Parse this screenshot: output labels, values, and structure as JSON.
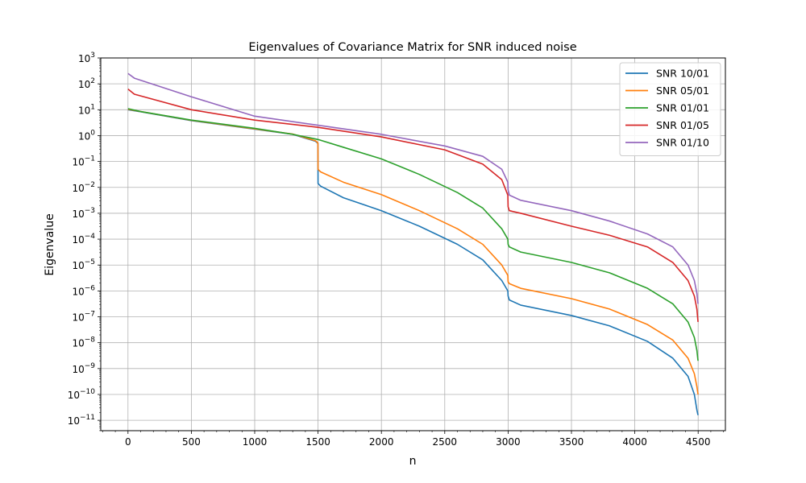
{
  "chart_data": {
    "type": "line",
    "title": "Eigenvalues of Covariance Matrix for SNR induced noise",
    "xlabel": "n",
    "ylabel": "Eigenvalue",
    "xlim": [
      -215,
      4715
    ],
    "ylim_exponent": [
      -11.4,
      3
    ],
    "yscale": "log",
    "grid": true,
    "legend_position": "top-right",
    "x_ticks": [
      0,
      500,
      1000,
      1500,
      2000,
      2500,
      3000,
      3500,
      4000,
      4500
    ],
    "x_tick_labels": [
      "0",
      "500",
      "1000",
      "1500",
      "2000",
      "2500",
      "3000",
      "3500",
      "4000",
      "4500"
    ],
    "y_tick_exponents": [
      -11,
      -10,
      -9,
      -8,
      -7,
      -6,
      -5,
      -4,
      -3,
      -2,
      -1,
      0,
      1,
      2,
      3
    ],
    "y_tick_labels": [
      "10",
      "10",
      "10",
      "10",
      "10",
      "10",
      "10",
      "10",
      "10",
      "10",
      "10",
      "10",
      "10",
      "10",
      "10"
    ],
    "y_tick_superscripts": [
      "−11",
      "−10",
      "−9",
      "−8",
      "−7",
      "−6",
      "−5",
      "−4",
      "−3",
      "−2",
      "−1",
      "0",
      "1",
      "2",
      "3"
    ],
    "series": [
      {
        "name": "SNR 10/01",
        "color": "#1f77b4",
        "points": [
          [
            0,
            1.0
          ],
          [
            100,
            0.92
          ],
          [
            500,
            0.58
          ],
          [
            1000,
            0.25
          ],
          [
            1300,
            0.05
          ],
          [
            1480,
            -0.22
          ],
          [
            1499,
            -0.3
          ],
          [
            1500,
            -1.85
          ],
          [
            1520,
            -1.95
          ],
          [
            1700,
            -2.4
          ],
          [
            2000,
            -2.9
          ],
          [
            2300,
            -3.5
          ],
          [
            2600,
            -4.2
          ],
          [
            2800,
            -4.8
          ],
          [
            2950,
            -5.6
          ],
          [
            2998,
            -6.0
          ],
          [
            3000,
            -6.2
          ],
          [
            3010,
            -6.35
          ],
          [
            3100,
            -6.55
          ],
          [
            3500,
            -6.95
          ],
          [
            3800,
            -7.35
          ],
          [
            4100,
            -7.95
          ],
          [
            4300,
            -8.6
          ],
          [
            4420,
            -9.3
          ],
          [
            4470,
            -10.0
          ],
          [
            4490,
            -10.6
          ],
          [
            4499,
            -10.8
          ]
        ]
      },
      {
        "name": "SNR 05/01",
        "color": "#ff7f0e",
        "points": [
          [
            0,
            1.02
          ],
          [
            100,
            0.93
          ],
          [
            500,
            0.59
          ],
          [
            1000,
            0.26
          ],
          [
            1300,
            0.06
          ],
          [
            1480,
            -0.2
          ],
          [
            1499,
            -0.28
          ],
          [
            1500,
            -1.3
          ],
          [
            1520,
            -1.4
          ],
          [
            1700,
            -1.8
          ],
          [
            2000,
            -2.28
          ],
          [
            2300,
            -2.9
          ],
          [
            2600,
            -3.6
          ],
          [
            2800,
            -4.2
          ],
          [
            2950,
            -5.0
          ],
          [
            2998,
            -5.4
          ],
          [
            3000,
            -5.65
          ],
          [
            3010,
            -5.72
          ],
          [
            3100,
            -5.9
          ],
          [
            3500,
            -6.3
          ],
          [
            3800,
            -6.7
          ],
          [
            4100,
            -7.3
          ],
          [
            4300,
            -7.9
          ],
          [
            4420,
            -8.6
          ],
          [
            4470,
            -9.2
          ],
          [
            4490,
            -9.7
          ],
          [
            4499,
            -10.0
          ]
        ]
      },
      {
        "name": "SNR 01/01",
        "color": "#2ca02c",
        "points": [
          [
            0,
            1.04
          ],
          [
            100,
            0.93
          ],
          [
            500,
            0.6
          ],
          [
            1000,
            0.28
          ],
          [
            1300,
            0.05
          ],
          [
            1500,
            -0.15
          ],
          [
            1700,
            -0.45
          ],
          [
            2000,
            -0.9
          ],
          [
            2300,
            -1.5
          ],
          [
            2600,
            -2.2
          ],
          [
            2800,
            -2.8
          ],
          [
            2950,
            -3.6
          ],
          [
            2998,
            -4.0
          ],
          [
            3000,
            -4.2
          ],
          [
            3010,
            -4.3
          ],
          [
            3100,
            -4.5
          ],
          [
            3500,
            -4.9
          ],
          [
            3800,
            -5.3
          ],
          [
            4100,
            -5.9
          ],
          [
            4300,
            -6.5
          ],
          [
            4420,
            -7.2
          ],
          [
            4470,
            -7.8
          ],
          [
            4490,
            -8.3
          ],
          [
            4499,
            -8.7
          ]
        ]
      },
      {
        "name": "SNR 01/05",
        "color": "#d62728",
        "points": [
          [
            0,
            1.8
          ],
          [
            50,
            1.6
          ],
          [
            500,
            1.0
          ],
          [
            1000,
            0.6
          ],
          [
            1500,
            0.32
          ],
          [
            2000,
            -0.05
          ],
          [
            2500,
            -0.55
          ],
          [
            2800,
            -1.1
          ],
          [
            2950,
            -1.7
          ],
          [
            2998,
            -2.3
          ],
          [
            3000,
            -2.75
          ],
          [
            3010,
            -2.9
          ],
          [
            3100,
            -3.0
          ],
          [
            3500,
            -3.5
          ],
          [
            3800,
            -3.85
          ],
          [
            4100,
            -4.3
          ],
          [
            4300,
            -4.9
          ],
          [
            4420,
            -5.6
          ],
          [
            4470,
            -6.2
          ],
          [
            4490,
            -6.7
          ],
          [
            4499,
            -7.2
          ]
        ]
      },
      {
        "name": "SNR 01/10",
        "color": "#9467bd",
        "points": [
          [
            0,
            2.4
          ],
          [
            50,
            2.22
          ],
          [
            500,
            1.5
          ],
          [
            1000,
            0.75
          ],
          [
            1500,
            0.4
          ],
          [
            2000,
            0.05
          ],
          [
            2500,
            -0.4
          ],
          [
            2800,
            -0.8
          ],
          [
            2950,
            -1.3
          ],
          [
            2998,
            -1.8
          ],
          [
            3000,
            -2.1
          ],
          [
            3010,
            -2.3
          ],
          [
            3100,
            -2.5
          ],
          [
            3500,
            -2.9
          ],
          [
            3800,
            -3.3
          ],
          [
            4100,
            -3.8
          ],
          [
            4300,
            -4.3
          ],
          [
            4420,
            -5.0
          ],
          [
            4470,
            -5.6
          ],
          [
            4490,
            -6.1
          ],
          [
            4499,
            -6.5
          ]
        ]
      }
    ]
  }
}
